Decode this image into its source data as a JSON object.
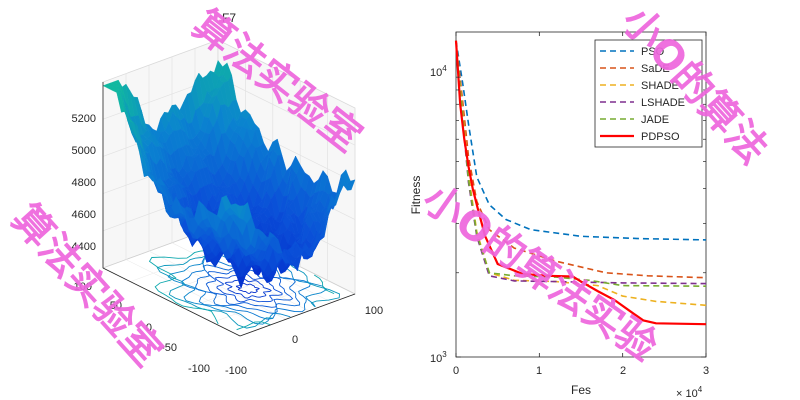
{
  "chart_data": [
    {
      "type": "surface",
      "title": "F7",
      "x_ticks": [
        "100",
        "0",
        "-100"
      ],
      "y_ticks": [
        "100",
        "50",
        "0",
        "-50",
        "-100"
      ],
      "z_ticks": [
        "5200",
        "5000",
        "4800",
        "4600",
        "4400"
      ],
      "zlim": [
        4300,
        5300
      ],
      "colormap": [
        "#10b8a0",
        "#0a82d0",
        "#0a50d8",
        "#0020c8"
      ]
    },
    {
      "type": "line",
      "xlabel": "Fes",
      "ylabel": "Fitness",
      "xscale_label": "× 10",
      "xscale_exp": "4",
      "x_ticks": [
        "0",
        "1",
        "2",
        "3"
      ],
      "y_ticks": [
        {
          "base": "10",
          "exp": "4",
          "value": 10000
        },
        {
          "base": "10",
          "exp": "3",
          "value": 1000
        }
      ],
      "xlim": [
        0,
        30000
      ],
      "ylim": [
        1000,
        14500
      ],
      "yscale": "log",
      "legend_position": "top-right",
      "series": [
        {
          "name": "PSO",
          "color": "#0072bd",
          "style": "dashed",
          "points": [
            [
              0,
              13500
            ],
            [
              800,
              9500
            ],
            [
              1500,
              6800
            ],
            [
              2500,
              4400
            ],
            [
              4000,
              3500
            ],
            [
              6000,
              3100
            ],
            [
              9000,
              2850
            ],
            [
              15000,
              2700
            ],
            [
              22000,
              2650
            ],
            [
              30000,
              2620
            ]
          ]
        },
        {
          "name": "SaDE",
          "color": "#d95319",
          "style": "dashed",
          "points": [
            [
              0,
              13500
            ],
            [
              800,
              8200
            ],
            [
              1500,
              5200
            ],
            [
              2500,
              3600
            ],
            [
              4000,
              2850
            ],
            [
              7000,
              2450
            ],
            [
              12000,
              2200
            ],
            [
              18000,
              2000
            ],
            [
              23000,
              1950
            ],
            [
              30000,
              1920
            ]
          ]
        },
        {
          "name": "SHADE",
          "color": "#edb120",
          "style": "dashed",
          "points": [
            [
              0,
              13500
            ],
            [
              800,
              7500
            ],
            [
              1500,
              4500
            ],
            [
              2500,
              2800
            ],
            [
              4000,
              2000
            ],
            [
              7000,
              1880
            ],
            [
              12000,
              1860
            ],
            [
              17000,
              1800
            ],
            [
              20000,
              1650
            ],
            [
              24000,
              1580
            ],
            [
              30000,
              1530
            ]
          ]
        },
        {
          "name": "LSHADE",
          "color": "#7e2f8e",
          "style": "dashed",
          "points": [
            [
              0,
              13500
            ],
            [
              800,
              7000
            ],
            [
              1500,
              4200
            ],
            [
              2500,
              2700
            ],
            [
              4000,
              1950
            ],
            [
              7000,
              1870
            ],
            [
              12000,
              1860
            ],
            [
              20000,
              1840
            ],
            [
              30000,
              1830
            ]
          ]
        },
        {
          "name": "JADE",
          "color": "#77ac30",
          "style": "dashed",
          "points": [
            [
              0,
              13500
            ],
            [
              800,
              7200
            ],
            [
              1500,
              4300
            ],
            [
              2500,
              2750
            ],
            [
              4000,
              2000
            ],
            [
              7000,
              1950
            ],
            [
              12000,
              1930
            ],
            [
              16000,
              1880
            ],
            [
              20000,
              1800
            ],
            [
              30000,
              1790
            ]
          ]
        },
        {
          "name": "PDPSO",
          "color": "#ff0000",
          "style": "solid",
          "points": [
            [
              0,
              13500
            ],
            [
              500,
              8000
            ],
            [
              1000,
              6000
            ],
            [
              1500,
              4800
            ],
            [
              2000,
              4000
            ],
            [
              2600,
              3400
            ],
            [
              3500,
              2700
            ],
            [
              5000,
              2150
            ],
            [
              8000,
              1980
            ],
            [
              11000,
              1950
            ],
            [
              14000,
              1940
            ],
            [
              15000,
              1860
            ],
            [
              17000,
              1720
            ],
            [
              19000,
              1600
            ],
            [
              21000,
              1450
            ],
            [
              22500,
              1350
            ],
            [
              24000,
              1320
            ],
            [
              30000,
              1310
            ]
          ]
        }
      ]
    }
  ],
  "watermarks": [
    {
      "text": "算法实验室"
    },
    {
      "text": "小O的算法"
    },
    {
      "text": "算法实验室"
    },
    {
      "text": "小O的算法实验"
    }
  ]
}
